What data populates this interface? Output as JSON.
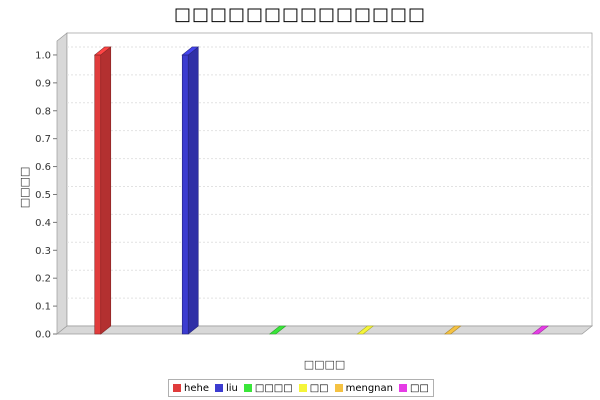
{
  "chart_data": {
    "type": "bar",
    "title": "□□□□□□□□□□□□□□",
    "xlabel": "□□□□",
    "ylabel": "□□□□",
    "ylim": [
      0,
      1.05
    ],
    "yticks": [
      "0.0",
      "0.1",
      "0.2",
      "0.3",
      "0.4",
      "0.5",
      "0.6",
      "0.7",
      "0.8",
      "0.9",
      "1.0"
    ],
    "grid": true,
    "three_d": true,
    "legend_position": "bottom",
    "series": [
      {
        "name": "hehe",
        "value": 1,
        "color": "#e03c3c"
      },
      {
        "name": "liu",
        "value": 1,
        "color": "#3c3cd0"
      },
      {
        "name": "□□□□",
        "value": 0,
        "color": "#39e639"
      },
      {
        "name": "□□",
        "value": 0,
        "color": "#f5f53a"
      },
      {
        "name": "mengnan",
        "value": 0,
        "color": "#f5c242"
      },
      {
        "name": "□□",
        "value": 0,
        "color": "#e63ce6"
      }
    ]
  }
}
